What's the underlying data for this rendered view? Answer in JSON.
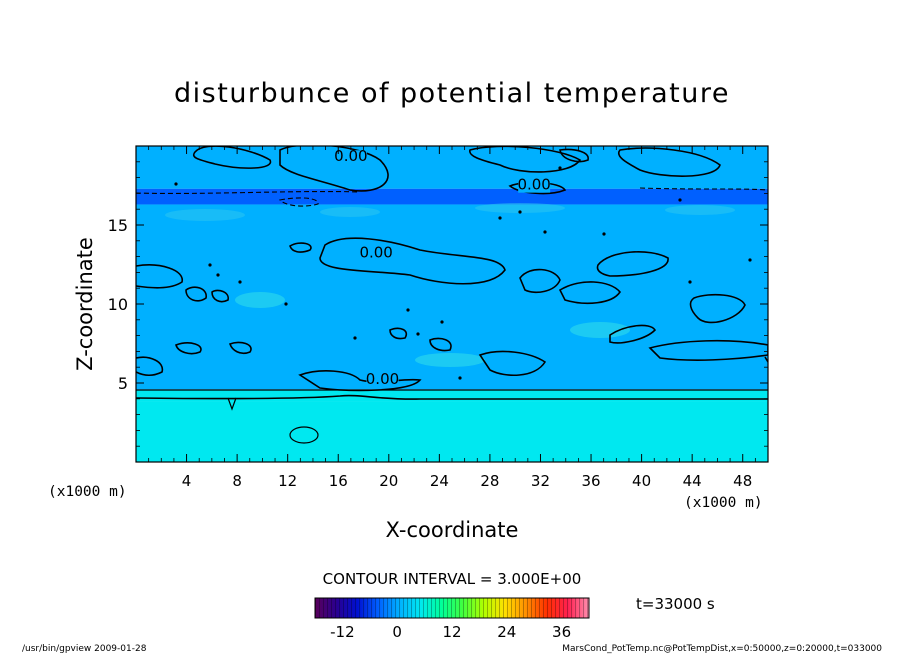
{
  "chart_data": {
    "type": "heatmap",
    "title": "disturbunce of potential temperature",
    "xlabel": "X-coordinate",
    "ylabel": "Z-coordinate",
    "x_unit": "(x1000 m)",
    "y_unit": "(x1000 m)",
    "xlim": [
      0,
      50
    ],
    "ylim": [
      0,
      20
    ],
    "xticks": [
      4,
      8,
      12,
      16,
      20,
      24,
      28,
      32,
      36,
      40,
      44,
      48
    ],
    "yticks": [
      5,
      10,
      15
    ],
    "grid": false,
    "contour_interval_label": "CONTOUR INTERVAL = 3.000E+00",
    "contour_labels": [
      {
        "text": "0.00",
        "x": 17.0,
        "z": 19.1
      },
      {
        "text": "0.00",
        "x": 31.5,
        "z": 17.3
      },
      {
        "text": "0.00",
        "x": 19.0,
        "z": 13.0
      },
      {
        "text": "0.00",
        "x": 19.5,
        "z": 5.0
      }
    ],
    "bands": [
      {
        "z": [
          0,
          3.8
        ],
        "value": 6
      },
      {
        "z": [
          3.8,
          4.6
        ],
        "value": 3
      },
      {
        "z": [
          4.6,
          16.3
        ],
        "value": 0
      },
      {
        "z": [
          16.3,
          17.3
        ],
        "value": -2
      },
      {
        "z": [
          17.3,
          20
        ],
        "value": 0
      }
    ],
    "colorbar": {
      "ticks": [
        -12,
        0,
        12,
        24,
        36
      ],
      "range": [
        -18,
        42
      ],
      "colors": [
        "#5a005a",
        "#2a0090",
        "#0010d0",
        "#0060ff",
        "#00b0ff",
        "#00e8f0",
        "#00ff9a",
        "#40ff40",
        "#b0ff00",
        "#ffe000",
        "#ff9000",
        "#ff3000",
        "#ff2050",
        "#ff90b0"
      ]
    },
    "time_label": "t=33000 s"
  },
  "footer": {
    "left": "/usr/bin/gpview   2009-01-28",
    "right": "MarsCond_PotTemp.nc@PotTempDist,x=0:50000,z=0:20000,t=033000"
  }
}
